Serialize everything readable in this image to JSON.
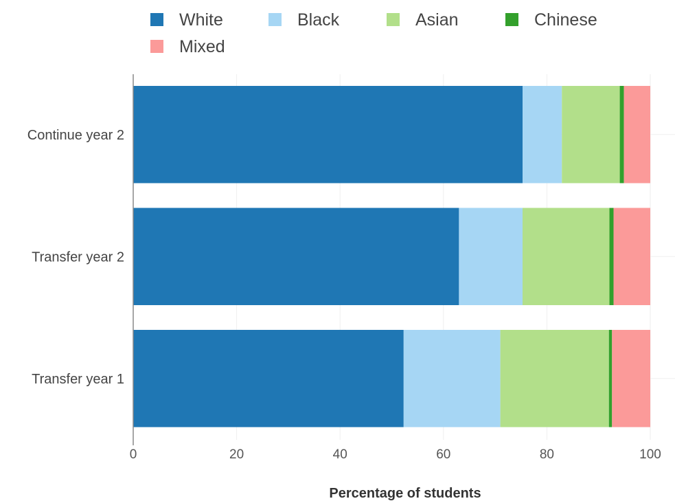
{
  "chart_data": {
    "type": "bar",
    "orientation": "horizontal",
    "stacked": true,
    "title": "",
    "xlabel": "Percentage of students",
    "ylabel": "",
    "xlim": [
      0,
      100
    ],
    "xticks": [
      "0",
      "20",
      "40",
      "60",
      "80",
      "100"
    ],
    "grid": true,
    "legend_position": "top-left",
    "categories": [
      "Continue year 2",
      "Transfer year 2",
      "Transfer year 1"
    ],
    "series": [
      {
        "name": "White",
        "color": "#1f77b4",
        "values": [
          75.3,
          63.0,
          52.3
        ]
      },
      {
        "name": "Black",
        "color": "#a6d6f4",
        "values": [
          7.6,
          12.3,
          18.7
        ]
      },
      {
        "name": "Asian",
        "color": "#b2df8a",
        "values": [
          11.2,
          16.8,
          21.0
        ]
      },
      {
        "name": "Chinese",
        "color": "#33a02c",
        "values": [
          0.8,
          0.8,
          0.6
        ]
      },
      {
        "name": "Mixed",
        "color": "#fb9a99",
        "values": [
          5.1,
          7.1,
          7.4
        ]
      }
    ]
  }
}
